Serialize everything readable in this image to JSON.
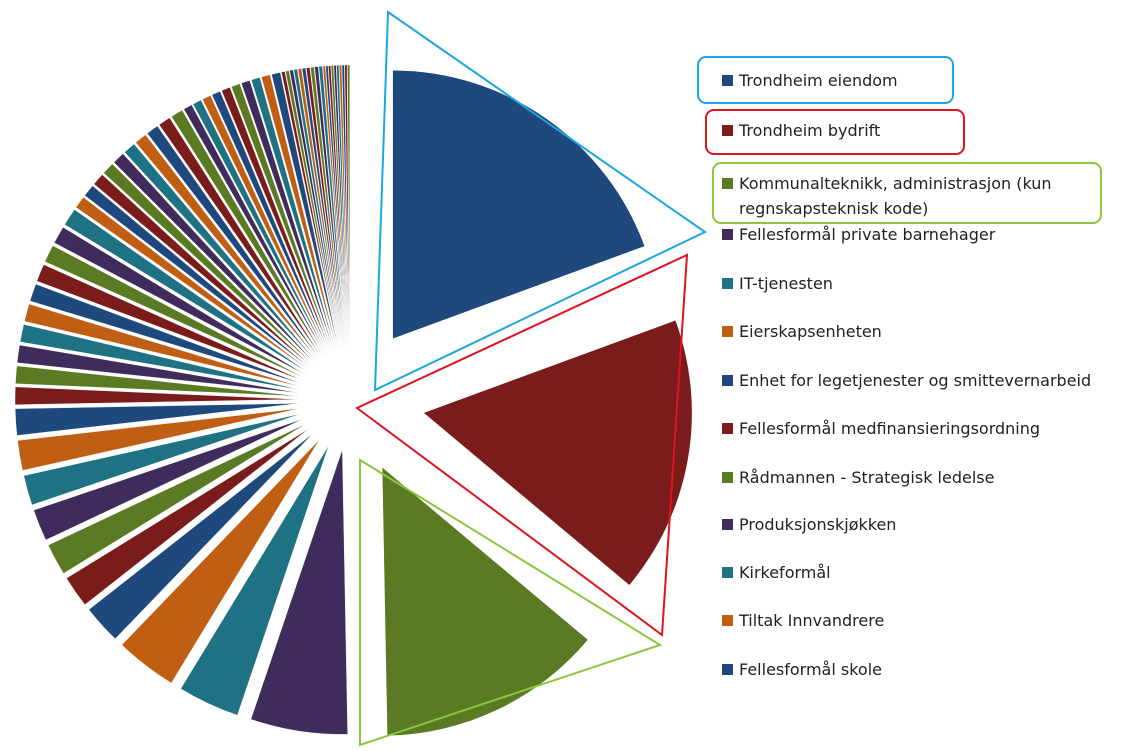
{
  "chart_data": {
    "type": "pie",
    "palette": [
      "#1f497d",
      "#7b1c1c",
      "#5b7a24",
      "#3f2c5c",
      "#1f7284",
      "#c05f14"
    ],
    "exploded": 3,
    "categories": [
      "Trondheim eiendom",
      "Trondheim bydrift",
      "Kommunalteknikk, administrasjon (kun regnskapsteknisk kode)",
      "Fellesformål private barnehager",
      "IT-tjenesten",
      "Eierskapsenheten",
      "Enhet for legetjenester og smittevernarbeid",
      "Fellesformål medfinansieringsordning",
      "Rådmannen - Strategisk ledelse",
      "Produksjonskjøkken",
      "Kirkeformål",
      "Tiltak Innvandrere",
      "Fellesformål skole",
      null,
      null,
      null,
      null,
      null,
      null,
      null,
      null,
      null,
      null,
      null,
      null,
      null,
      null,
      null,
      null,
      null,
      null,
      null,
      null,
      null,
      null,
      null,
      null,
      null,
      null,
      null,
      null,
      null,
      null,
      null,
      null,
      null,
      null,
      null,
      null,
      null,
      null,
      null,
      null,
      null,
      null,
      null,
      null,
      null,
      null,
      null,
      null,
      null,
      null
    ],
    "values": [
      19.4,
      16.7,
      13.6,
      5.5,
      3.5,
      3.5,
      2.2,
      1.8,
      1.8,
      1.8,
      1.7,
      1.7,
      1.5,
      1.0,
      1.0,
      1.0,
      1.0,
      1.0,
      1.0,
      1.0,
      1.0,
      1.0,
      1.0,
      0.7,
      0.7,
      0.7,
      0.7,
      0.7,
      0.7,
      0.7,
      0.7,
      0.7,
      0.7,
      0.5,
      0.5,
      0.5,
      0.5,
      0.5,
      0.5,
      0.5,
      0.5,
      0.5,
      0.5,
      0.2,
      0.2,
      0.2,
      0.2,
      0.2,
      0.2,
      0.2,
      0.2,
      0.2,
      0.2,
      0.13,
      0.13,
      0.13,
      0.13,
      0.13,
      0.13,
      0.13,
      0.13,
      0.13,
      0.13
    ]
  }
}
